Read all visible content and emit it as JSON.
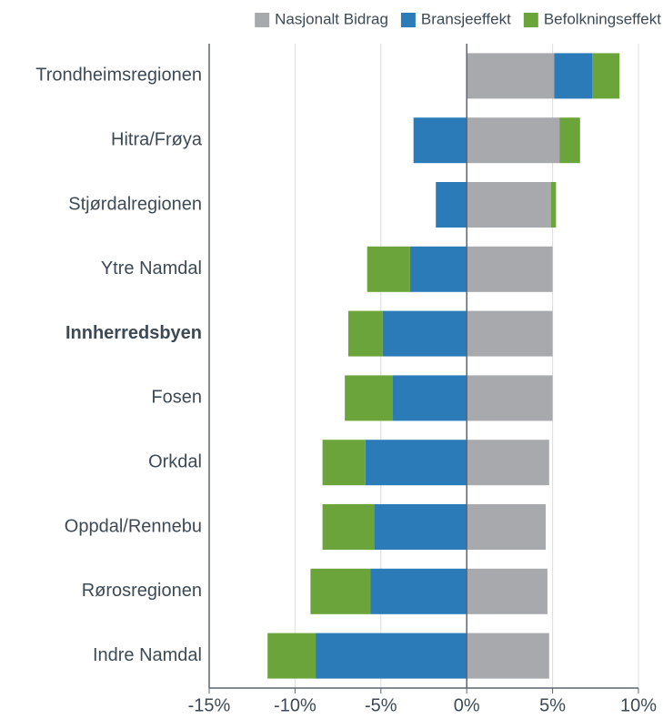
{
  "chart_data": {
    "type": "stacked-barh",
    "categories": [
      "Trondheimsregionen",
      "Hitra/Frøya",
      "Stjørdalregionen",
      "Ytre Namdal",
      "Innherredsbyen",
      "Fosen",
      "Orkdal",
      "Oppdal/Rennebu",
      "Rørosregionen",
      "Indre Namdal"
    ],
    "highlight_index": 4,
    "series": [
      {
        "name": "Nasjonalt Bidrag",
        "color": "#a7a9ac",
        "values": [
          5.1,
          5.4,
          4.9,
          5.0,
          5.0,
          5.0,
          4.8,
          4.6,
          4.7,
          4.8
        ]
      },
      {
        "name": "Bransjeeffekt",
        "color": "#2b7bb9",
        "values": [
          2.2,
          -3.1,
          -1.8,
          -3.3,
          -4.9,
          -4.3,
          -5.9,
          -5.4,
          -5.6,
          -8.8
        ]
      },
      {
        "name": "Befolkningseffekt",
        "color": "#6ba43a",
        "values": [
          1.6,
          1.2,
          0.3,
          -2.5,
          -2.0,
          -2.8,
          -2.5,
          -3.0,
          -3.5,
          -2.8
        ]
      }
    ],
    "xlim": [
      -15,
      10
    ],
    "xticks": [
      {
        "value": -15,
        "label": "-15%"
      },
      {
        "value": -10,
        "label": "-10%"
      },
      {
        "value": -5,
        "label": "-5%"
      },
      {
        "value": 0,
        "label": "0%"
      },
      {
        "value": 5,
        "label": "5%"
      },
      {
        "value": 10,
        "label": "10%"
      }
    ],
    "grid": true,
    "legend": "top-right"
  }
}
